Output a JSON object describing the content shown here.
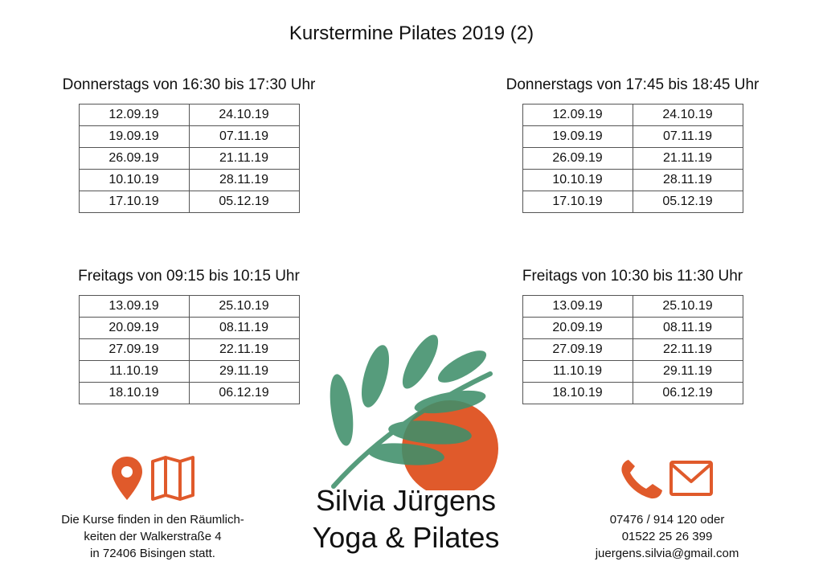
{
  "title": "Kurstermine Pilates 2019 (2)",
  "schedules": [
    {
      "heading": "Donnerstags von 16:30 bis 17:30 Uhr",
      "rows": [
        [
          "12.09.19",
          "24.10.19"
        ],
        [
          "19.09.19",
          "07.11.19"
        ],
        [
          "26.09.19",
          "21.11.19"
        ],
        [
          "10.10.19",
          "28.11.19"
        ],
        [
          "17.10.19",
          "05.12.19"
        ]
      ]
    },
    {
      "heading": "Donnerstags von 17:45 bis 18:45 Uhr",
      "rows": [
        [
          "12.09.19",
          "24.10.19"
        ],
        [
          "19.09.19",
          "07.11.19"
        ],
        [
          "26.09.19",
          "21.11.19"
        ],
        [
          "10.10.19",
          "28.11.19"
        ],
        [
          "17.10.19",
          "05.12.19"
        ]
      ]
    },
    {
      "heading": "Freitags von 09:15 bis 10:15 Uhr",
      "rows": [
        [
          "13.09.19",
          "25.10.19"
        ],
        [
          "20.09.19",
          "08.11.19"
        ],
        [
          "27.09.19",
          "22.11.19"
        ],
        [
          "11.10.19",
          "29.11.19"
        ],
        [
          "18.10.19",
          "06.12.19"
        ]
      ]
    },
    {
      "heading": "Freitags von 10:30 bis 11:30 Uhr",
      "rows": [
        [
          "13.09.19",
          "25.10.19"
        ],
        [
          "20.09.19",
          "08.11.19"
        ],
        [
          "27.09.19",
          "22.11.19"
        ],
        [
          "11.10.19",
          "29.11.19"
        ],
        [
          "18.10.19",
          "06.12.19"
        ]
      ]
    }
  ],
  "location": {
    "icons": [
      "location-pin-icon",
      "map-icon"
    ],
    "lines": [
      "Die Kurse finden in den Räumlich-",
      "keiten der Walkerstraße 4",
      "in 72406 Bisingen statt."
    ]
  },
  "brand": {
    "name": "Silvia Jürgens",
    "subtitle": "Yoga & Pilates"
  },
  "contact": {
    "icons": [
      "phone-icon",
      "mail-icon"
    ],
    "lines": [
      "07476 / 914 120 oder",
      "01522 25 26 399",
      "juergens.silvia@gmail.com"
    ]
  },
  "colors": {
    "accent": "#e05a2b",
    "leaf": "#3f8f6a"
  }
}
